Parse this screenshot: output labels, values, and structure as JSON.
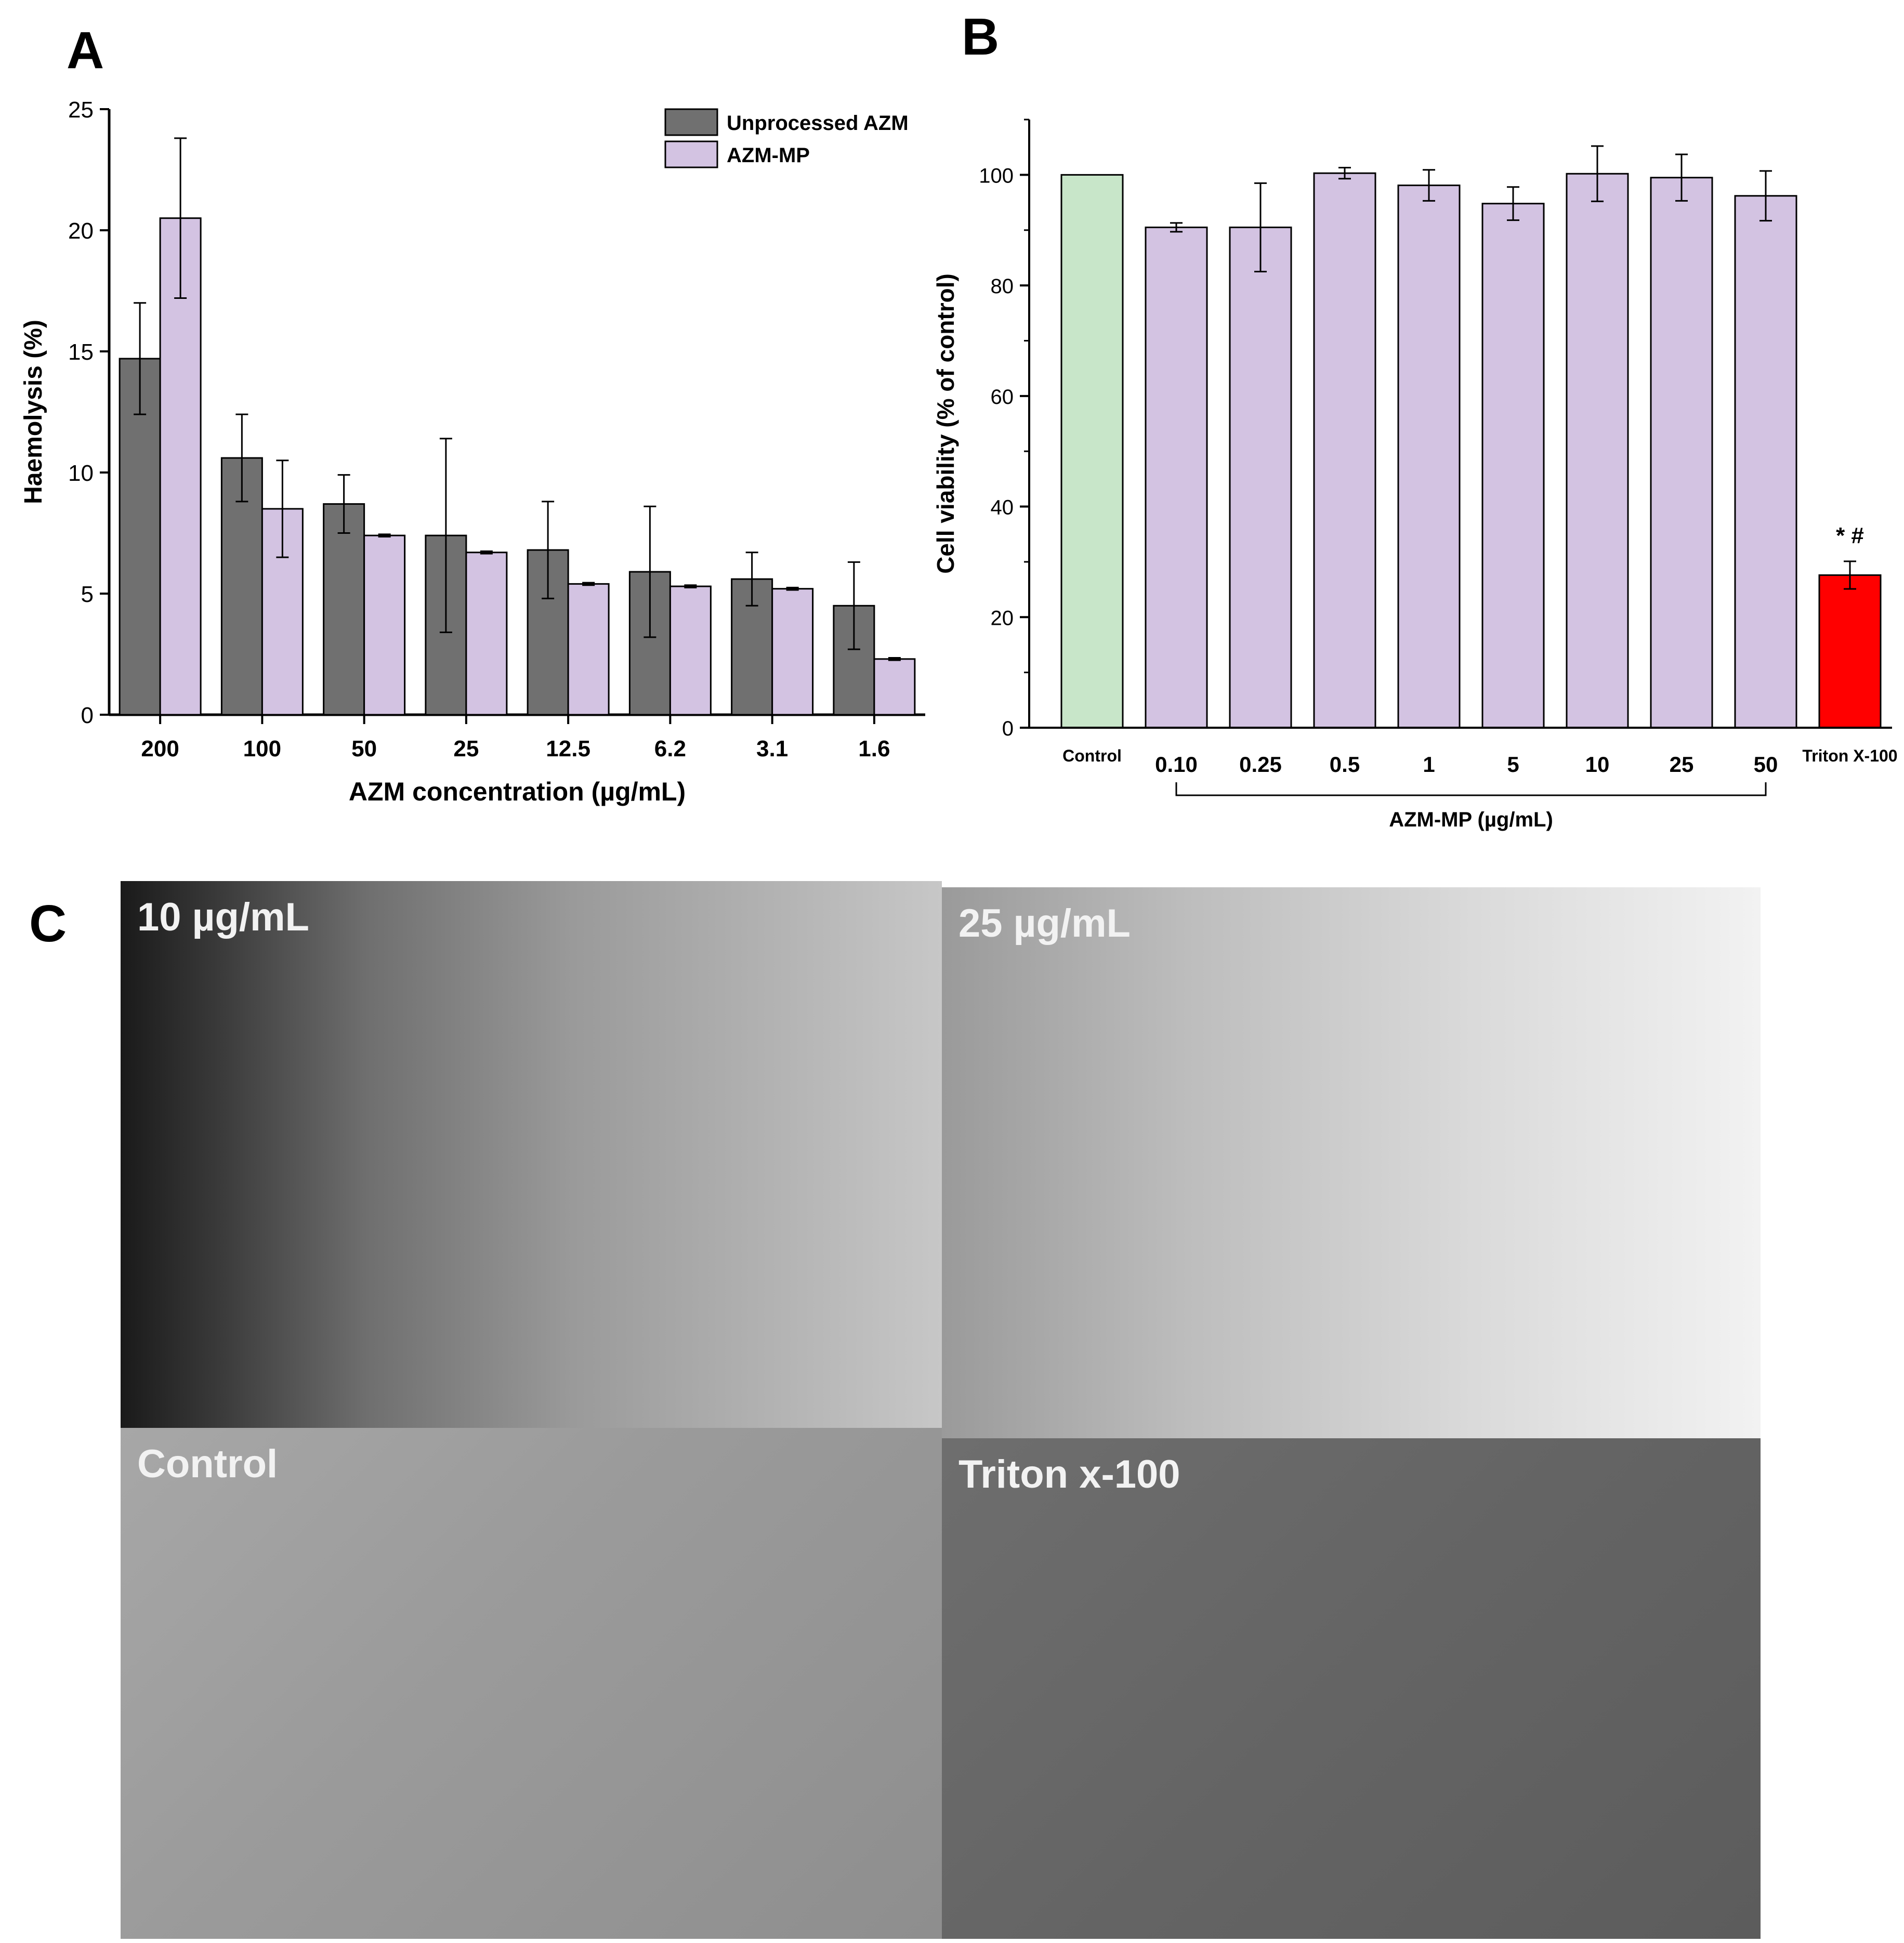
{
  "panels": {
    "a": {
      "letter": "A"
    },
    "b": {
      "letter": "B"
    },
    "c": {
      "letter": "C"
    }
  },
  "chart_data": [
    {
      "type": "bar",
      "panel": "A",
      "ylabel": "Haemolysis (%)",
      "xlabel": "AZM concentration (µg/mL)",
      "ylim": [
        0,
        25
      ],
      "yticks": [
        "0",
        "5",
        "10",
        "15",
        "20",
        "25"
      ],
      "categories": [
        "200",
        "100",
        "50",
        "25",
        "12.5",
        "6.2",
        "3.1",
        "1.6"
      ],
      "legend_position": "top-right",
      "series": [
        {
          "name": "Unprocessed AZM",
          "color": "#707070",
          "values": [
            14.7,
            10.6,
            8.7,
            7.4,
            6.8,
            5.9,
            5.6,
            4.5
          ],
          "errors": [
            2.3,
            1.8,
            1.2,
            4.0,
            2.0,
            2.7,
            1.1,
            1.8
          ]
        },
        {
          "name": "AZM-MP",
          "color": "#d3c3e2",
          "values": [
            20.5,
            8.5,
            7.4,
            6.7,
            5.4,
            5.3,
            5.2,
            2.3
          ],
          "errors": [
            3.3,
            2.0,
            0.05,
            0.05,
            0.05,
            0.05,
            0.05,
            0.05
          ]
        }
      ]
    },
    {
      "type": "bar",
      "panel": "B",
      "ylabel": "Cell viability (% of control)",
      "xlabel": "AZM-MP (µg/mL)",
      "ylim": [
        0,
        110
      ],
      "yticks": [
        "0",
        "20",
        "40",
        "60",
        "80",
        "100"
      ],
      "categories": [
        "Control",
        "0.10",
        "0.25",
        "0.5",
        "1",
        "5",
        "10",
        "25",
        "50",
        "Triton X-100"
      ],
      "values": [
        100,
        90.5,
        90.5,
        100.3,
        98.1,
        94.8,
        100.2,
        99.5,
        96.2,
        27.6
      ],
      "errors": [
        0,
        0.8,
        8.0,
        1.0,
        2.8,
        3.0,
        5.0,
        4.2,
        4.5,
        2.5
      ],
      "colors": [
        "#c8e6c9",
        "#d3c3e2",
        "#d3c3e2",
        "#d3c3e2",
        "#d3c3e2",
        "#d3c3e2",
        "#d3c3e2",
        "#d3c3e2",
        "#d3c3e2",
        "#ff0000"
      ],
      "significance_label": "*  #",
      "bracket_label": "AZM-MP (µg/mL)"
    }
  ],
  "micrographs": [
    {
      "label": "10 µg/mL"
    },
    {
      "label": "25 µg/mL"
    },
    {
      "label": "Control"
    },
    {
      "label": "Triton x-100"
    }
  ]
}
